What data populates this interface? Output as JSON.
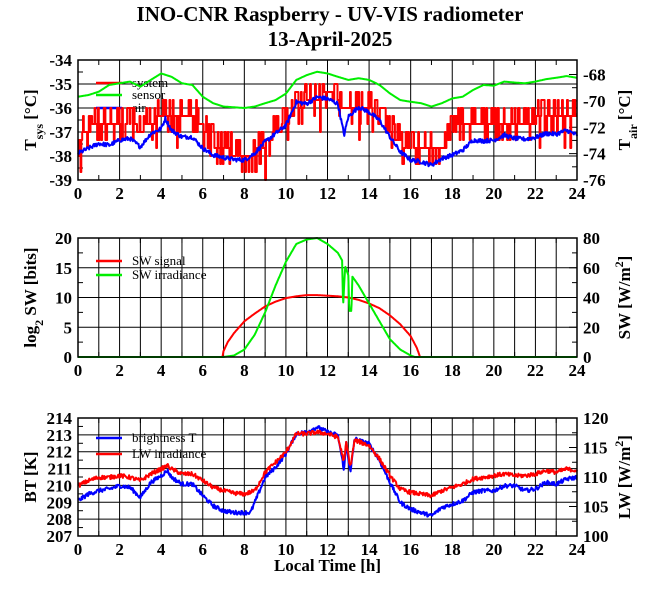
{
  "title": "INO-CNR Raspberry - UV-VIS radiometer",
  "subtitle": "13-April-2025",
  "colors": {
    "red": "#ff0000",
    "green": "#00ee00",
    "blue": "#0000ff"
  },
  "chart_data": [
    {
      "type": "line",
      "ylabel_left": {
        "main": "T",
        "sub": "sys",
        "rest": " [°C]"
      },
      "ylabel_right": {
        "main": "T",
        "sub": "air",
        "rest": " [°C]"
      },
      "xlim": [
        0,
        24
      ],
      "xticks": [
        "0",
        "2",
        "4",
        "6",
        "8",
        "10",
        "12",
        "14",
        "16",
        "18",
        "20",
        "22",
        "24"
      ],
      "ylim_left": [
        -39,
        -34
      ],
      "yticks_left": [
        "-39",
        "-38",
        "-37",
        "-36",
        "-35",
        "-34"
      ],
      "ylim_right": [
        -76,
        -66.9
      ],
      "yticks_right": [
        "-76",
        "-74",
        "-72",
        "-70",
        "-68"
      ],
      "grid": true,
      "legend": "top-left",
      "series": [
        {
          "name": "system",
          "color": "red",
          "axis": "left",
          "style": "step-noise",
          "x": [
            0,
            0.5,
            1,
            1.5,
            2,
            2.5,
            3,
            3.5,
            4,
            4.5,
            5,
            5.5,
            6,
            6.5,
            7,
            7.5,
            8,
            8.5,
            9,
            9.5,
            10,
            10.5,
            11,
            11.5,
            12,
            12.5,
            13,
            13.5,
            14,
            14.5,
            15,
            15.5,
            16,
            16.5,
            17,
            17.5,
            18,
            18.5,
            19,
            19.5,
            20,
            20.5,
            21,
            21.5,
            22,
            22.5,
            23,
            23.5,
            24
          ],
          "y": [
            -37.3,
            -36.9,
            -36.7,
            -36.7,
            -36.7,
            -36.7,
            -36.9,
            -36.7,
            -36.3,
            -36.2,
            -36.2,
            -36.2,
            -36.8,
            -37.5,
            -37.6,
            -37.9,
            -37.9,
            -37.9,
            -37.5,
            -37.0,
            -36.7,
            -36.0,
            -35.8,
            -35.8,
            -35.3,
            -35.8,
            -36.0,
            -36.0,
            -36.0,
            -36.6,
            -37.0,
            -37.5,
            -37.8,
            -37.8,
            -37.8,
            -37.8,
            -37.0,
            -36.6,
            -36.6,
            -36.6,
            -36.6,
            -36.6,
            -36.6,
            -36.6,
            -36.5,
            -36.3,
            -36.3,
            -36.3,
            -36.3
          ]
        },
        {
          "name": "sensor",
          "color": "green",
          "axis": "left",
          "style": "smooth",
          "x": [
            0,
            0.5,
            1,
            1.5,
            2,
            2.5,
            3,
            3.5,
            4,
            4.5,
            5,
            5.5,
            6,
            6.5,
            7,
            7.5,
            8,
            8.5,
            9,
            9.5,
            10,
            10.5,
            11,
            11.5,
            12,
            12.5,
            13,
            13.5,
            14,
            14.5,
            15,
            15.5,
            16,
            16.5,
            17,
            17.5,
            18,
            18.5,
            19,
            19.5,
            20,
            20.5,
            21,
            21.5,
            22,
            22.5,
            23,
            23.5,
            24
          ],
          "y": [
            -35.53,
            -35.46,
            -35.32,
            -35.04,
            -34.97,
            -34.9,
            -35.11,
            -34.83,
            -34.56,
            -34.7,
            -34.97,
            -35.04,
            -35.53,
            -35.8,
            -35.94,
            -35.97,
            -36.0,
            -35.94,
            -35.8,
            -35.67,
            -35.4,
            -34.83,
            -34.63,
            -34.49,
            -34.56,
            -34.7,
            -34.83,
            -34.76,
            -34.83,
            -35.04,
            -35.39,
            -35.67,
            -35.74,
            -35.8,
            -35.94,
            -35.8,
            -35.6,
            -35.53,
            -35.25,
            -35.04,
            -35.07,
            -34.9,
            -34.94,
            -34.97,
            -34.9,
            -34.8,
            -34.74,
            -34.67,
            -34.74
          ]
        },
        {
          "name": "air",
          "color": "blue",
          "axis": "right",
          "style": "noisy",
          "x": [
            0,
            0.5,
            1,
            1.5,
            2,
            2.5,
            3,
            3.5,
            4,
            4.2,
            4.5,
            5,
            5.5,
            6,
            6.5,
            7,
            7.5,
            8,
            8.5,
            9,
            9.5,
            10,
            10.5,
            11,
            11.5,
            12,
            12.5,
            12.8,
            13,
            13.5,
            14,
            14.5,
            15,
            15.5,
            16,
            16.5,
            17,
            17.5,
            18,
            18.5,
            19,
            19.5,
            20,
            20.5,
            21,
            21.5,
            22,
            22.5,
            23,
            23.5,
            24
          ],
          "y": [
            -73.98,
            -73.6,
            -73.23,
            -73.36,
            -72.98,
            -72.85,
            -73.49,
            -72.48,
            -72.1,
            -71.34,
            -72.23,
            -72.73,
            -72.73,
            -73.6,
            -74.11,
            -74.29,
            -74.44,
            -74.49,
            -73.98,
            -73.1,
            -72.48,
            -71.85,
            -70.09,
            -70.22,
            -69.71,
            -69.84,
            -70.22,
            -72.6,
            -71.2,
            -70.47,
            -70.85,
            -71.47,
            -72.73,
            -73.86,
            -74.49,
            -74.6,
            -74.87,
            -74.36,
            -74.11,
            -73.74,
            -72.98,
            -73.03,
            -72.98,
            -72.6,
            -72.85,
            -72.9,
            -72.77,
            -72.48,
            -72.52,
            -72.23,
            -72.6
          ]
        }
      ]
    },
    {
      "type": "line",
      "ylabel_left": {
        "main": "log",
        "sub": "2",
        "rest": " SW [bits]"
      },
      "ylabel_right": {
        "main": "SW [W/m",
        "sup": "2",
        "rest": "]"
      },
      "xlim": [
        0,
        24
      ],
      "xticks": [
        "0",
        "2",
        "4",
        "6",
        "8",
        "10",
        "12",
        "14",
        "16",
        "18",
        "20",
        "22",
        "24"
      ],
      "ylim_left": [
        0,
        20
      ],
      "yticks_left": [
        "0",
        "5",
        "10",
        "15",
        "20"
      ],
      "ylim_right": [
        0,
        80
      ],
      "yticks_right": [
        "0",
        "20",
        "40",
        "60",
        "80"
      ],
      "grid": true,
      "legend": "top-left",
      "series": [
        {
          "name": "SW signal",
          "color": "red",
          "axis": "left",
          "style": "smooth",
          "x": [
            0,
            6.95,
            7.0,
            7.2,
            7.5,
            8,
            8.5,
            9,
            9.5,
            10,
            10.5,
            11,
            11.5,
            12,
            12.5,
            13,
            13.5,
            14,
            14.5,
            15,
            15.5,
            16,
            16.3,
            16.45,
            24
          ],
          "y": [
            0,
            0,
            1,
            2.5,
            4,
            6,
            7.3,
            8.5,
            9.3,
            9.9,
            10.2,
            10.4,
            10.4,
            10.3,
            10.2,
            10,
            9.6,
            9,
            8.2,
            7,
            5.5,
            3.5,
            1.5,
            0,
            0
          ]
        },
        {
          "name": "SW irradiance",
          "color": "green",
          "axis": "right",
          "style": "smooth",
          "x": [
            0,
            7.0,
            7.5,
            8,
            8.5,
            9,
            9.5,
            10,
            10.5,
            11,
            11.5,
            12,
            12.5,
            12.7,
            12.75,
            12.85,
            13.0,
            13.05,
            13.15,
            13.2,
            13.5,
            14,
            14.5,
            15,
            15.5,
            16,
            16.2,
            24
          ],
          "y": [
            0,
            0,
            1,
            5,
            15,
            30,
            48,
            64,
            76,
            79,
            80,
            76,
            70,
            65,
            34,
            61,
            55,
            31,
            31,
            54,
            48,
            36,
            24,
            12,
            5,
            1,
            0,
            0
          ]
        }
      ]
    },
    {
      "type": "line",
      "xlabel": "Local Time [h]",
      "ylabel_left": {
        "main": "BT [K]"
      },
      "ylabel_right": {
        "main": "LW [W/m",
        "sup": "2",
        "rest": "]"
      },
      "xlim": [
        0,
        24
      ],
      "xticks": [
        "0",
        "2",
        "4",
        "6",
        "8",
        "10",
        "12",
        "14",
        "16",
        "18",
        "20",
        "22",
        "24"
      ],
      "ylim_left": [
        207,
        214
      ],
      "yticks_left": [
        "207",
        "208",
        "209",
        "210",
        "211",
        "212",
        "213",
        "214"
      ],
      "ylim_right": [
        100,
        120
      ],
      "yticks_right": [
        "100",
        "105",
        "110",
        "115",
        "120"
      ],
      "grid": true,
      "legend": "top-left",
      "series": [
        {
          "name": "brightness T",
          "color": "blue",
          "axis": "left",
          "style": "noisy",
          "x": [
            0,
            0.5,
            1,
            1.5,
            2,
            2.5,
            3,
            3.5,
            4,
            4.3,
            4.5,
            5,
            5.5,
            6,
            6.5,
            7,
            7.5,
            8,
            8.3,
            8.5,
            9,
            9.5,
            10,
            10.5,
            11,
            11.5,
            12,
            12.5,
            12.8,
            12.9,
            13.1,
            13.3,
            13.5,
            14,
            14.5,
            15,
            15.5,
            16,
            16.5,
            17,
            17.5,
            18,
            18.5,
            19,
            19.5,
            20,
            20.5,
            21,
            21.5,
            22,
            22.5,
            23,
            23.5,
            24
          ],
          "y": [
            209.09,
            209.49,
            209.69,
            209.79,
            209.98,
            209.88,
            209.29,
            210.18,
            210.58,
            210.88,
            210.48,
            210.08,
            210.08,
            209.39,
            208.79,
            208.49,
            208.39,
            208.39,
            208.39,
            208.99,
            210.48,
            211.08,
            211.87,
            213.07,
            213.17,
            213.46,
            213.17,
            212.97,
            210.88,
            212.57,
            210.68,
            212.77,
            212.67,
            212.47,
            211.48,
            210.18,
            208.99,
            208.59,
            208.39,
            208.19,
            208.69,
            208.89,
            209.09,
            209.59,
            209.69,
            209.69,
            209.98,
            209.98,
            209.69,
            209.79,
            210.18,
            210.08,
            210.38,
            210.48
          ]
        },
        {
          "name": "LW irradiance",
          "color": "red",
          "axis": "right",
          "style": "noisy",
          "x": [
            0,
            0.5,
            1,
            1.5,
            2,
            2.5,
            3,
            3.5,
            4,
            4.3,
            4.5,
            5,
            5.5,
            6,
            6.5,
            7,
            7.5,
            8,
            8.5,
            9,
            9.5,
            10,
            10.5,
            11,
            11.5,
            12,
            12.5,
            12.8,
            12.9,
            13.1,
            13.3,
            13.5,
            14,
            14.5,
            15,
            15.5,
            16,
            16.5,
            17,
            17.5,
            18,
            18.5,
            19,
            19.5,
            20,
            20.5,
            21,
            21.5,
            22,
            22.5,
            23,
            23.5,
            24
          ],
          "y": [
            108.52,
            109.38,
            109.94,
            109.94,
            110.23,
            109.94,
            109.38,
            110.51,
            111.36,
            111.93,
            111.36,
            110.51,
            110.51,
            109.38,
            108.24,
            107.67,
            107.27,
            107.1,
            107.67,
            110.8,
            112.5,
            114.2,
            117.33,
            117.33,
            117.6,
            117.33,
            116.76,
            112.5,
            115.9,
            111.65,
            116.2,
            116.0,
            115.34,
            113.07,
            110.23,
            107.95,
            107.39,
            107.1,
            106.82,
            107.67,
            108.24,
            108.81,
            109.66,
            109.94,
            110.23,
            110.51,
            110.23,
            110.23,
            110.51,
            111.08,
            110.8,
            111.36,
            111.08
          ]
        }
      ]
    }
  ]
}
